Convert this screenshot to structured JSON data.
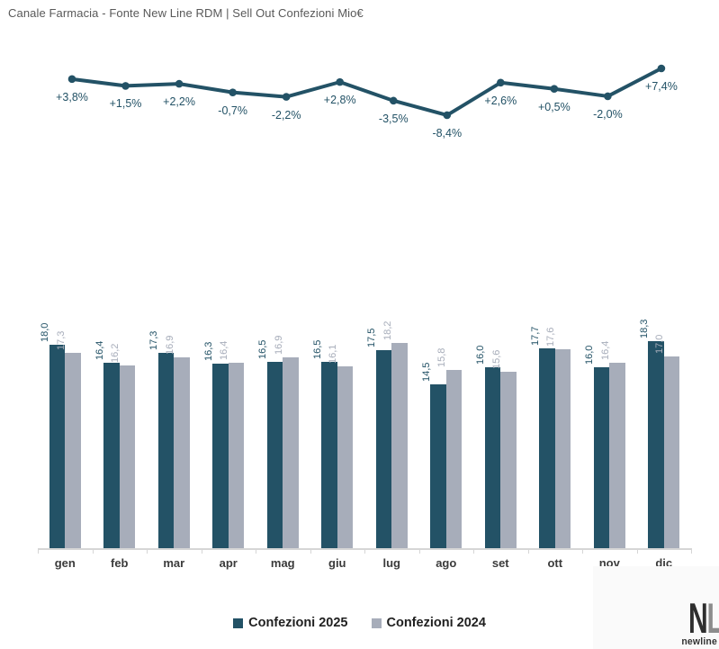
{
  "title": "Canale Farmacia - Fonte New Line RDM | Sell Out Confezioni Mio€",
  "months": [
    "gen",
    "feb",
    "mar",
    "apr",
    "mag",
    "giu",
    "lug",
    "ago",
    "set",
    "ott",
    "nov",
    "dic"
  ],
  "colors": {
    "teal": "#235266",
    "gray": "#a7adba",
    "axis": "#d6d6d6",
    "lime": "#bfd200"
  },
  "legend": {
    "items": [
      {
        "label": "Confezioni 2025",
        "color": "#235266"
      },
      {
        "label": "Confezioni 2024",
        "color": "#a7adba"
      }
    ]
  },
  "logo": {
    "n": "N",
    "l": "L",
    "sub": "newline"
  },
  "chart_data": [
    {
      "type": "line",
      "name": "Variazione % Confezioni 2025 vs 2024",
      "categories": [
        "gen",
        "feb",
        "mar",
        "apr",
        "mag",
        "giu",
        "lug",
        "ago",
        "set",
        "ott",
        "nov",
        "dic"
      ],
      "values": [
        3.8,
        1.5,
        2.2,
        -0.7,
        -2.2,
        2.8,
        -3.5,
        -8.4,
        2.6,
        0.5,
        -2.0,
        7.4
      ],
      "labels": [
        "+3,8%",
        "+1,5%",
        "+2,2%",
        "-0,7%",
        "-2,2%",
        "+2,8%",
        "-3,5%",
        "-8,4%",
        "+2,6%",
        "+0,5%",
        "-2,0%",
        "+7,4%"
      ],
      "color": "#235266",
      "grid": false,
      "axis_visible": false
    },
    {
      "type": "bar",
      "title": "Canale Farmacia - Fonte New Line RDM | Sell Out Confezioni Mio€",
      "categories": [
        "gen",
        "feb",
        "mar",
        "apr",
        "mag",
        "giu",
        "lug",
        "ago",
        "set",
        "ott",
        "nov",
        "dic"
      ],
      "series": [
        {
          "name": "Confezioni 2025",
          "color": "#235266",
          "values": [
            18.0,
            16.4,
            17.3,
            16.3,
            16.5,
            16.5,
            17.5,
            14.5,
            16.0,
            17.7,
            16.0,
            18.3
          ],
          "labels": [
            "18,0",
            "16,4",
            "17,3",
            "16,3",
            "16,5",
            "16,5",
            "17,5",
            "14,5",
            "16,0",
            "17,7",
            "16,0",
            "18,3"
          ]
        },
        {
          "name": "Confezioni 2024",
          "color": "#a7adba",
          "values": [
            17.3,
            16.2,
            16.9,
            16.4,
            16.9,
            16.1,
            18.2,
            15.8,
            15.6,
            17.6,
            16.4,
            17.0
          ],
          "labels": [
            "17,3",
            "16,2",
            "16,9",
            "16,4",
            "16,9",
            "16,1",
            "18,2",
            "15,8",
            "15,6",
            "17,6",
            "16,4",
            "17,0"
          ]
        }
      ],
      "ylim": [
        0,
        20
      ],
      "grid": false,
      "legend_position": "bottom",
      "value_labels_rotated": true
    }
  ]
}
